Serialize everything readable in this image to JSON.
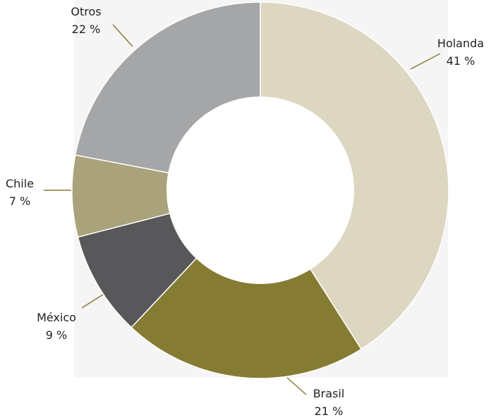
{
  "chart_data": {
    "type": "pie",
    "style": "donut",
    "title": "",
    "slices": [
      {
        "label": "Holanda",
        "value": 41,
        "value_label": "41 %",
        "color": "#ddd6c1"
      },
      {
        "label": "Brasil",
        "value": 21,
        "value_label": "21 %",
        "color": "#857b33"
      },
      {
        "label": "México",
        "value": 9,
        "value_label": "9 %",
        "color": "#58585a"
      },
      {
        "label": "Chile",
        "value": 7,
        "value_label": "7 %",
        "color": "#aaa27a"
      },
      {
        "label": "Otros",
        "value": 22,
        "value_label": "22 %",
        "color": "#a5a6a8"
      }
    ],
    "colors": {
      "background_panel": "#f5f5f5",
      "leader_line": "#857b33",
      "text": "#231f20"
    }
  }
}
